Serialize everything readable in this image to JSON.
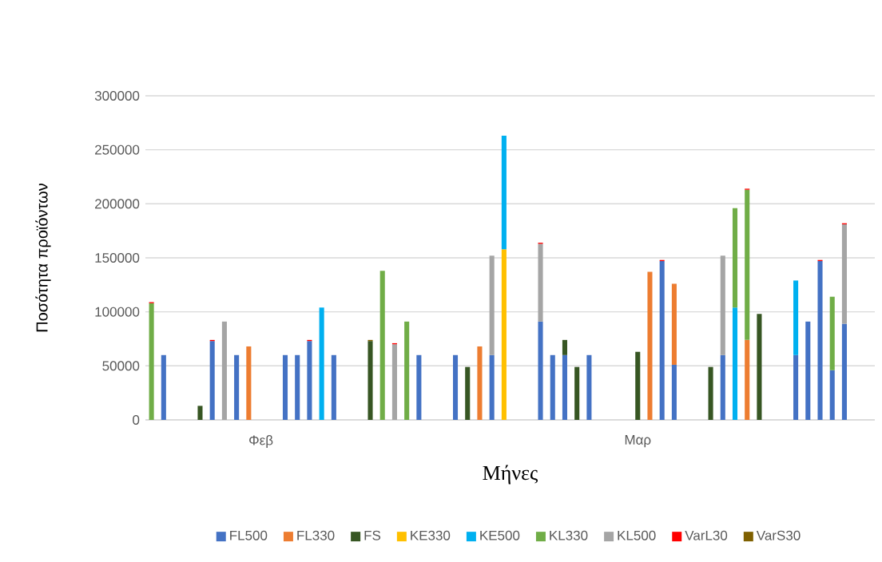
{
  "chart_data": {
    "type": "bar",
    "stacked": true,
    "xlabel": "Μήνες",
    "ylabel": "Ποσότητα προϊόντων",
    "categories": [
      null,
      null,
      null,
      null,
      null,
      null,
      null,
      null,
      null,
      "Φεβ",
      null,
      null,
      null,
      null,
      null,
      null,
      null,
      null,
      null,
      null,
      null,
      null,
      null,
      null,
      null,
      null,
      null,
      null,
      null,
      null,
      null,
      null,
      null,
      null,
      null,
      null,
      null,
      null,
      null,
      null,
      "Μαρ",
      null,
      null,
      null,
      null,
      null,
      null,
      null,
      null,
      null,
      null,
      null,
      null,
      null,
      null,
      null,
      null,
      null,
      null,
      null
    ],
    "ylim": [
      0,
      300000
    ],
    "yticks": [
      0,
      50000,
      100000,
      150000,
      200000,
      250000,
      300000
    ],
    "grid": "y",
    "legend": "bottom",
    "series": [
      {
        "name": "FL500",
        "color": "#4472c4",
        "values": [
          null,
          60000,
          null,
          null,
          null,
          73000,
          null,
          60000,
          null,
          null,
          null,
          60000,
          60000,
          73000,
          null,
          60000,
          null,
          null,
          null,
          null,
          null,
          null,
          60000,
          null,
          null,
          60000,
          null,
          null,
          60000,
          null,
          null,
          null,
          91000,
          60000,
          60000,
          null,
          60000,
          null,
          null,
          null,
          null,
          null,
          147000,
          51000,
          null,
          null,
          null,
          60000,
          null,
          null,
          null,
          null,
          null,
          60000,
          91000,
          147000,
          46000,
          89000,
          null,
          null
        ]
      },
      {
        "name": "FL330",
        "color": "#ed7d31",
        "values": [
          null,
          null,
          null,
          null,
          null,
          null,
          null,
          null,
          68000,
          null,
          null,
          null,
          null,
          null,
          null,
          null,
          null,
          null,
          null,
          null,
          null,
          null,
          null,
          null,
          null,
          null,
          null,
          68000,
          null,
          null,
          null,
          null,
          null,
          null,
          null,
          null,
          null,
          null,
          null,
          null,
          null,
          137000,
          null,
          75000,
          null,
          null,
          null,
          null,
          null,
          74000,
          null,
          null,
          null,
          null,
          null,
          null,
          null,
          null,
          null,
          null
        ]
      },
      {
        "name": "FS",
        "color": "#375623",
        "values": [
          null,
          null,
          null,
          null,
          13000,
          null,
          null,
          null,
          null,
          null,
          null,
          null,
          null,
          null,
          null,
          null,
          null,
          null,
          73000,
          null,
          null,
          null,
          null,
          null,
          null,
          null,
          49000,
          null,
          null,
          null,
          null,
          null,
          null,
          null,
          14000,
          49000,
          null,
          null,
          null,
          null,
          63000,
          null,
          null,
          null,
          null,
          null,
          49000,
          null,
          null,
          null,
          98000,
          null,
          null,
          null,
          null,
          null,
          null,
          null,
          null,
          null
        ]
      },
      {
        "name": "KE330",
        "color": "#ffc000",
        "values": [
          null,
          null,
          null,
          null,
          null,
          null,
          null,
          null,
          null,
          null,
          null,
          null,
          null,
          null,
          null,
          null,
          null,
          null,
          null,
          null,
          null,
          null,
          null,
          null,
          null,
          null,
          null,
          null,
          null,
          158000,
          null,
          null,
          null,
          null,
          null,
          null,
          null,
          null,
          null,
          null,
          null,
          null,
          null,
          null,
          null,
          null,
          null,
          null,
          null,
          null,
          null,
          null,
          null,
          null,
          null,
          null,
          null,
          null,
          null,
          null
        ]
      },
      {
        "name": "KE500",
        "color": "#00b0f0",
        "values": [
          null,
          null,
          null,
          null,
          null,
          null,
          null,
          null,
          null,
          null,
          null,
          null,
          null,
          null,
          104000,
          null,
          null,
          null,
          null,
          null,
          null,
          null,
          null,
          null,
          null,
          null,
          null,
          null,
          null,
          105000,
          null,
          null,
          null,
          null,
          null,
          null,
          null,
          null,
          null,
          null,
          null,
          null,
          null,
          null,
          null,
          null,
          null,
          null,
          104000,
          null,
          null,
          null,
          null,
          69000,
          null,
          null,
          null,
          null,
          null,
          null
        ]
      },
      {
        "name": "KL330",
        "color": "#70ad47",
        "values": [
          108000,
          null,
          null,
          null,
          null,
          null,
          null,
          null,
          null,
          null,
          null,
          null,
          null,
          null,
          null,
          null,
          null,
          null,
          null,
          138000,
          null,
          91000,
          null,
          null,
          null,
          null,
          null,
          null,
          null,
          null,
          null,
          null,
          null,
          null,
          null,
          null,
          null,
          null,
          null,
          null,
          null,
          null,
          null,
          null,
          null,
          null,
          null,
          null,
          92000,
          139000,
          null,
          null,
          null,
          null,
          null,
          null,
          68000,
          null,
          null,
          null
        ]
      },
      {
        "name": "KL500",
        "color": "#a5a5a5",
        "values": [
          null,
          null,
          null,
          null,
          null,
          null,
          91000,
          null,
          null,
          null,
          null,
          null,
          null,
          null,
          null,
          null,
          null,
          null,
          null,
          null,
          70000,
          null,
          null,
          null,
          null,
          null,
          null,
          null,
          92000,
          null,
          null,
          null,
          72000,
          null,
          null,
          null,
          null,
          null,
          null,
          null,
          null,
          null,
          null,
          null,
          null,
          null,
          null,
          92000,
          null,
          null,
          null,
          null,
          null,
          null,
          null,
          null,
          null,
          92000,
          null,
          null
        ]
      },
      {
        "name": "VarL30",
        "color": "#ff0000",
        "values": [
          1000,
          null,
          null,
          null,
          null,
          1000,
          null,
          null,
          null,
          null,
          null,
          null,
          null,
          1000,
          null,
          null,
          null,
          null,
          null,
          null,
          1000,
          null,
          null,
          null,
          null,
          null,
          null,
          null,
          null,
          null,
          null,
          null,
          1000,
          null,
          null,
          null,
          null,
          null,
          null,
          null,
          null,
          null,
          1000,
          null,
          null,
          null,
          null,
          null,
          null,
          1000,
          null,
          null,
          null,
          null,
          null,
          1000,
          null,
          1000,
          null,
          null
        ]
      },
      {
        "name": "VarS30",
        "color": "#7f6000",
        "values": [
          null,
          null,
          null,
          null,
          null,
          null,
          null,
          null,
          null,
          null,
          null,
          null,
          null,
          null,
          null,
          null,
          null,
          null,
          1000,
          null,
          null,
          null,
          null,
          null,
          null,
          null,
          null,
          null,
          null,
          null,
          null,
          null,
          null,
          null,
          null,
          null,
          null,
          null,
          null,
          null,
          null,
          null,
          null,
          null,
          null,
          null,
          null,
          null,
          null,
          null,
          null,
          null,
          null,
          null,
          null,
          null,
          null,
          null,
          null,
          null
        ]
      }
    ]
  }
}
